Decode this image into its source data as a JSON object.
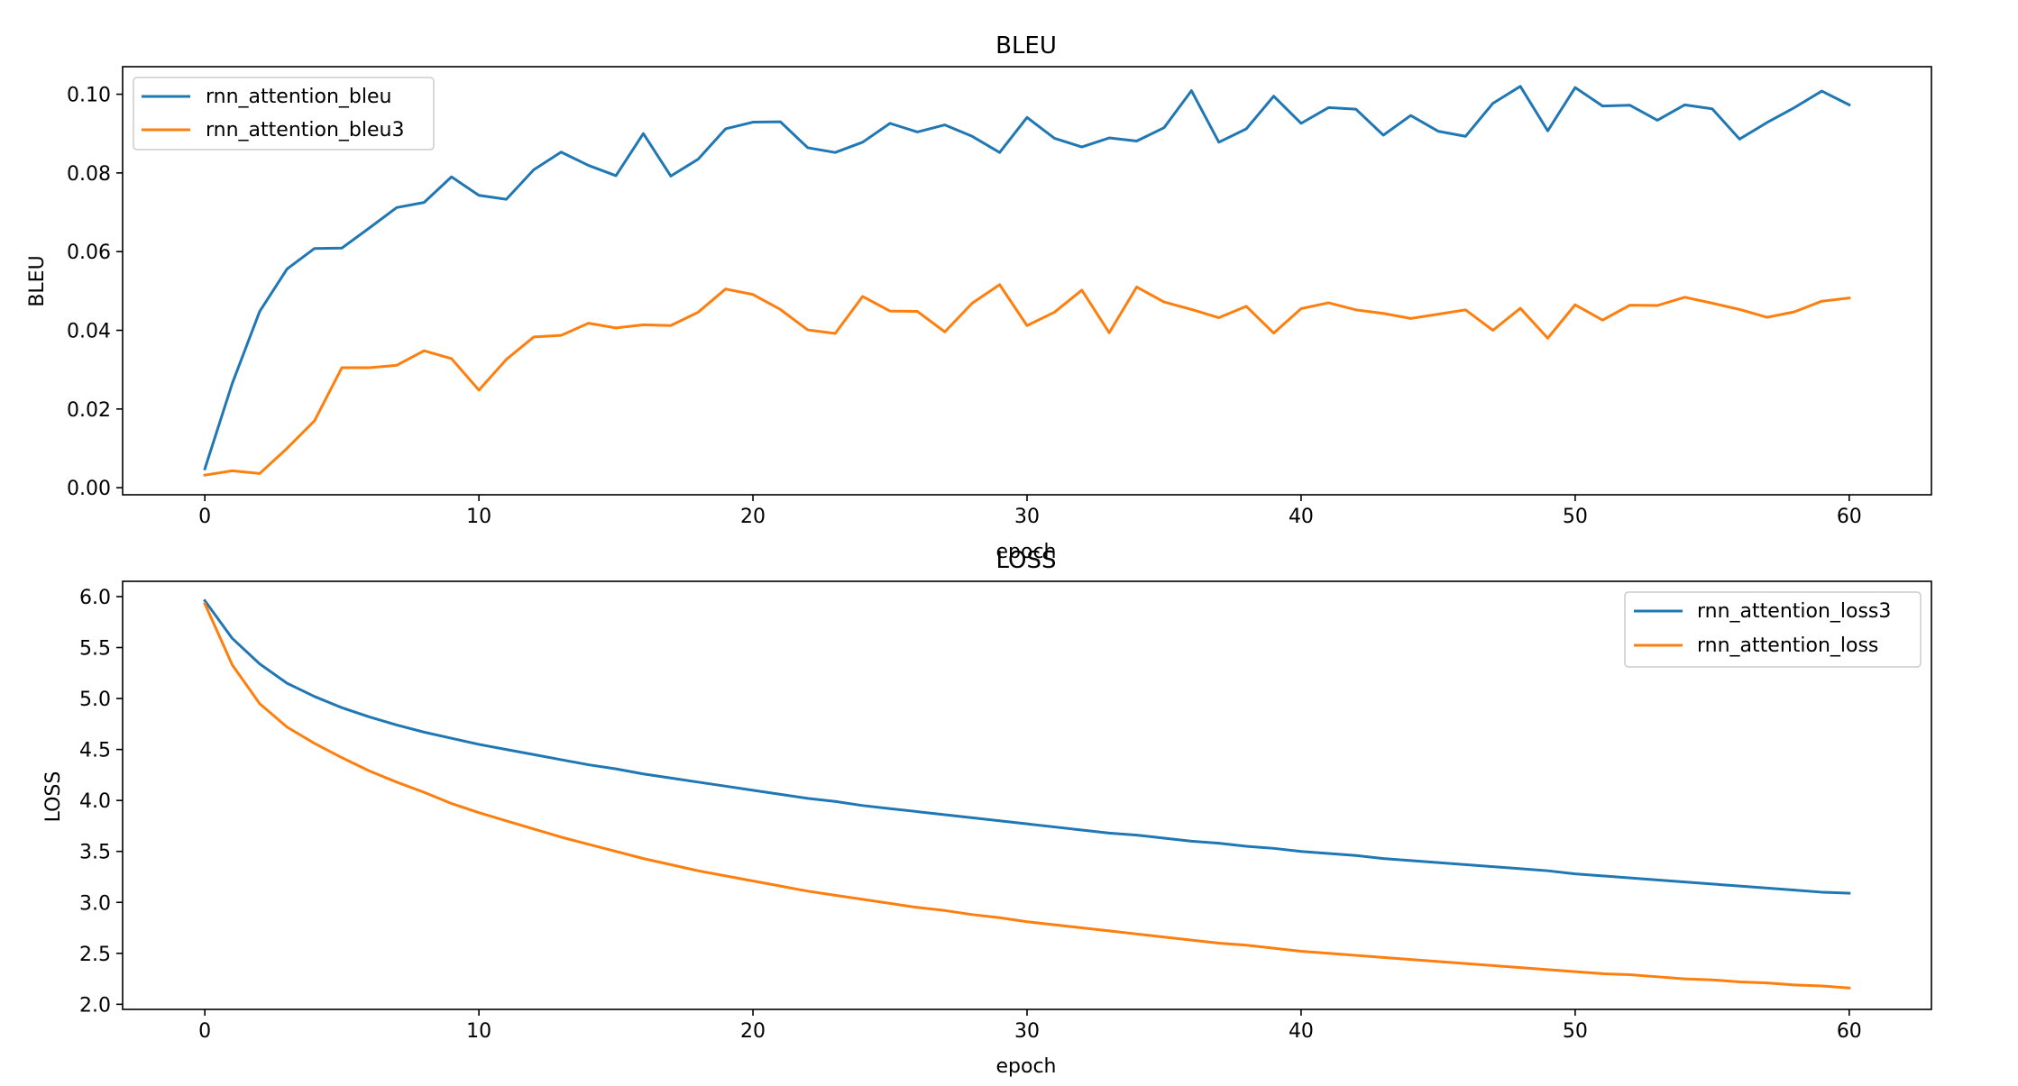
{
  "chart_data": [
    {
      "type": "line",
      "title": "BLEU",
      "xlabel": "epoch",
      "ylabel": "BLEU",
      "xlim": [
        -3,
        63
      ],
      "ylim": [
        -0.0018,
        0.107
      ],
      "xticks": [
        0,
        10,
        20,
        30,
        40,
        50,
        60
      ],
      "yticks": [
        0.0,
        0.02,
        0.04,
        0.06,
        0.08,
        0.1
      ],
      "ytick_labels": [
        "0.00",
        "0.02",
        "0.04",
        "0.06",
        "0.08",
        "0.10"
      ],
      "grid": false,
      "legend_position": "top-left",
      "series": [
        {
          "name": "rnn_attention_bleu",
          "color": "#1f77b4",
          "x": [
            0,
            1,
            2,
            3,
            4,
            5,
            6,
            7,
            8,
            9,
            10,
            11,
            12,
            13,
            14,
            15,
            16,
            17,
            18,
            19,
            20,
            21,
            22,
            23,
            24,
            25,
            26,
            27,
            28,
            29,
            30,
            31,
            32,
            33,
            34,
            35,
            36,
            37,
            38,
            39,
            40,
            41,
            42,
            43,
            44,
            45,
            46,
            47,
            48,
            49,
            50,
            51,
            52,
            53,
            54,
            55,
            56,
            57,
            58,
            59,
            60
          ],
          "values": [
            0.0048,
            0.0265,
            0.0448,
            0.0556,
            0.0608,
            0.0609,
            0.066,
            0.0712,
            0.0725,
            0.079,
            0.0743,
            0.0733,
            0.0808,
            0.0853,
            0.0819,
            0.0793,
            0.09,
            0.0792,
            0.0835,
            0.0912,
            0.0929,
            0.093,
            0.0864,
            0.0852,
            0.0878,
            0.0926,
            0.0904,
            0.0922,
            0.0893,
            0.0852,
            0.0941,
            0.0888,
            0.0866,
            0.0889,
            0.0881,
            0.0915,
            0.1009,
            0.0878,
            0.0912,
            0.0995,
            0.0926,
            0.0966,
            0.0962,
            0.0896,
            0.0946,
            0.0906,
            0.0893,
            0.0977,
            0.102,
            0.0907,
            0.1017,
            0.097,
            0.0972,
            0.0934,
            0.0973,
            0.0963,
            0.0886,
            0.0928,
            0.0966,
            0.1008,
            0.0973
          ]
        },
        {
          "name": "rnn_attention_bleu3",
          "color": "#ff7f0e",
          "x": [
            0,
            1,
            2,
            3,
            4,
            5,
            6,
            7,
            8,
            9,
            10,
            11,
            12,
            13,
            14,
            15,
            16,
            17,
            18,
            19,
            20,
            21,
            22,
            23,
            24,
            25,
            26,
            27,
            28,
            29,
            30,
            31,
            32,
            33,
            34,
            35,
            36,
            37,
            38,
            39,
            40,
            41,
            42,
            43,
            44,
            45,
            46,
            47,
            48,
            49,
            50,
            51,
            52,
            53,
            54,
            55,
            56,
            57,
            58,
            59,
            60
          ],
          "values": [
            0.0032,
            0.0043,
            0.0036,
            0.01,
            0.017,
            0.0305,
            0.0305,
            0.0311,
            0.0348,
            0.0328,
            0.0248,
            0.0326,
            0.0383,
            0.0387,
            0.0418,
            0.0406,
            0.0414,
            0.0412,
            0.0446,
            0.0505,
            0.0491,
            0.0453,
            0.0401,
            0.0392,
            0.0486,
            0.0449,
            0.0448,
            0.0396,
            0.0469,
            0.0516,
            0.0412,
            0.0446,
            0.0502,
            0.0394,
            0.051,
            0.0472,
            0.0453,
            0.0432,
            0.0461,
            0.0393,
            0.0455,
            0.047,
            0.0452,
            0.0443,
            0.043,
            0.0441,
            0.0452,
            0.04,
            0.0456,
            0.038,
            0.0465,
            0.0426,
            0.0464,
            0.0463,
            0.0484,
            0.0469,
            0.0453,
            0.0433,
            0.0447,
            0.0474,
            0.0482
          ]
        }
      ]
    },
    {
      "type": "line",
      "title": "LOSS",
      "xlabel": "epoch",
      "ylabel": "LOSS",
      "xlim": [
        -3,
        63
      ],
      "ylim": [
        1.95,
        6.15
      ],
      "xticks": [
        0,
        10,
        20,
        30,
        40,
        50,
        60
      ],
      "yticks": [
        2.0,
        2.5,
        3.0,
        3.5,
        4.0,
        4.5,
        5.0,
        5.5,
        6.0
      ],
      "ytick_labels": [
        "2.0",
        "2.5",
        "3.0",
        "3.5",
        "4.0",
        "4.5",
        "5.0",
        "5.5",
        "6.0"
      ],
      "grid": false,
      "legend_position": "top-right",
      "series": [
        {
          "name": "rnn_attention_loss3",
          "color": "#1f77b4",
          "x": [
            0,
            1,
            2,
            3,
            4,
            5,
            6,
            7,
            8,
            9,
            10,
            11,
            12,
            13,
            14,
            15,
            16,
            17,
            18,
            19,
            20,
            21,
            22,
            23,
            24,
            25,
            26,
            27,
            28,
            29,
            30,
            31,
            32,
            33,
            34,
            35,
            36,
            37,
            38,
            39,
            40,
            41,
            42,
            43,
            44,
            45,
            46,
            47,
            48,
            49,
            50,
            51,
            52,
            53,
            54,
            55,
            56,
            57,
            58,
            59,
            60
          ],
          "values": [
            5.96,
            5.59,
            5.34,
            5.15,
            5.02,
            4.91,
            4.82,
            4.74,
            4.67,
            4.61,
            4.55,
            4.5,
            4.45,
            4.4,
            4.35,
            4.31,
            4.26,
            4.22,
            4.18,
            4.14,
            4.1,
            4.06,
            4.02,
            3.99,
            3.95,
            3.92,
            3.89,
            3.86,
            3.83,
            3.8,
            3.77,
            3.74,
            3.71,
            3.68,
            3.66,
            3.63,
            3.6,
            3.58,
            3.55,
            3.53,
            3.5,
            3.48,
            3.46,
            3.43,
            3.41,
            3.39,
            3.37,
            3.35,
            3.33,
            3.31,
            3.28,
            3.26,
            3.24,
            3.22,
            3.2,
            3.18,
            3.16,
            3.14,
            3.12,
            3.1,
            3.09
          ]
        },
        {
          "name": "rnn_attention_loss",
          "color": "#ff7f0e",
          "x": [
            0,
            1,
            2,
            3,
            4,
            5,
            6,
            7,
            8,
            9,
            10,
            11,
            12,
            13,
            14,
            15,
            16,
            17,
            18,
            19,
            20,
            21,
            22,
            23,
            24,
            25,
            26,
            27,
            28,
            29,
            30,
            31,
            32,
            33,
            34,
            35,
            36,
            37,
            38,
            39,
            40,
            41,
            42,
            43,
            44,
            45,
            46,
            47,
            48,
            49,
            50,
            51,
            52,
            53,
            54,
            55,
            56,
            57,
            58,
            59,
            60
          ],
          "values": [
            5.93,
            5.33,
            4.95,
            4.72,
            4.56,
            4.42,
            4.29,
            4.18,
            4.08,
            3.97,
            3.88,
            3.8,
            3.72,
            3.64,
            3.57,
            3.5,
            3.43,
            3.37,
            3.31,
            3.26,
            3.21,
            3.16,
            3.11,
            3.07,
            3.03,
            2.99,
            2.95,
            2.92,
            2.88,
            2.85,
            2.81,
            2.78,
            2.75,
            2.72,
            2.69,
            2.66,
            2.63,
            2.6,
            2.58,
            2.55,
            2.52,
            2.5,
            2.48,
            2.46,
            2.44,
            2.42,
            2.4,
            2.38,
            2.36,
            2.34,
            2.32,
            2.3,
            2.29,
            2.27,
            2.25,
            2.24,
            2.22,
            2.21,
            2.19,
            2.18,
            2.16
          ]
        }
      ]
    }
  ]
}
